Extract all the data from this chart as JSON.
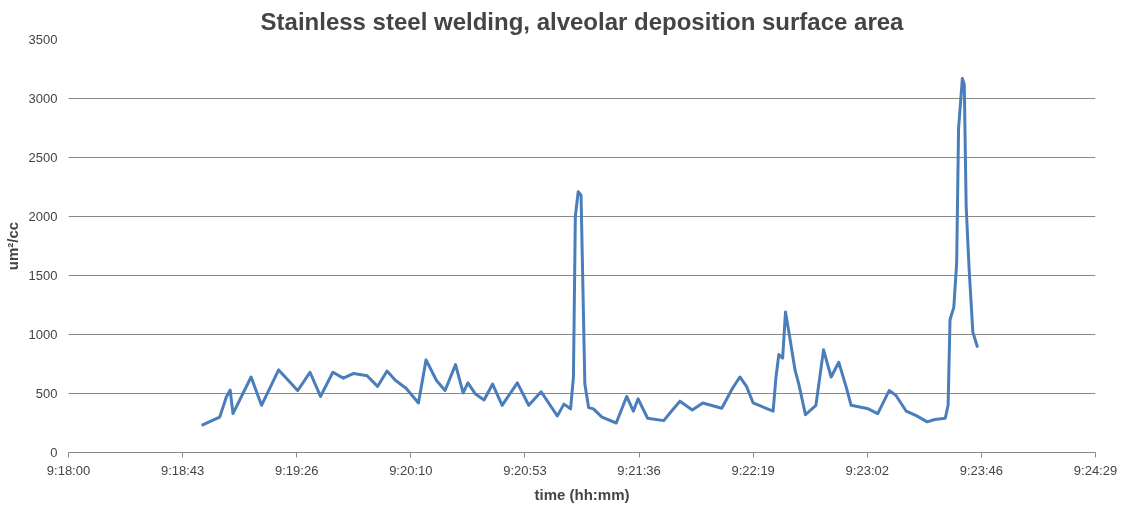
{
  "chart_data": {
    "type": "line",
    "title": "Stainless steel welding, alveolar deposition surface area",
    "xlabel": "time (hh:mm)",
    "ylabel": "um²/cc",
    "x": [
      9.314,
      9.3148,
      9.3159,
      9.3166,
      9.317,
      9.3173,
      9.3192,
      9.3203,
      9.3221,
      9.3241,
      9.3254,
      9.3265,
      9.3278,
      9.3289,
      9.33,
      9.3314,
      9.3325,
      9.3335,
      9.3344,
      9.3355,
      9.3368,
      9.3376,
      9.3387,
      9.3396,
      9.3407,
      9.3415,
      9.342,
      9.3428,
      9.3437,
      9.3446,
      9.3456,
      9.3472,
      9.3484,
      9.3497,
      9.3514,
      9.3521,
      9.3528,
      9.3531,
      9.3533,
      9.3536,
      9.3539,
      9.3543,
      9.3547,
      9.3552,
      9.3561,
      9.3576,
      9.3587,
      9.3594,
      9.3599,
      9.3609,
      9.3626,
      9.3634,
      9.3643,
      9.3656,
      9.3667,
      9.3687,
      9.3698,
      9.3706,
      9.3713,
      9.372,
      9.3735,
      9.3741,
      9.3744,
      9.3747,
      9.3751,
      9.3754,
      9.3758,
      9.3764,
      9.3768,
      9.3775,
      9.3786,
      9.3794,
      9.3802,
      9.381,
      9.3818,
      9.3823,
      9.3841,
      9.3851,
      9.3863,
      9.387,
      9.3881,
      9.3892,
      9.3903,
      9.3911,
      9.3922,
      9.3925,
      9.3927,
      9.3931,
      9.3934,
      9.3936,
      9.394,
      9.3942,
      9.3944,
      9.3947,
      9.3951,
      9.3956
    ],
    "series": [
      {
        "color": "#4a7ebb",
        "values": [
          230,
          260,
          300,
          470,
          530,
          330,
          640,
          400,
          700,
          525,
          680,
          475,
          680,
          630,
          670,
          650,
          560,
          690,
          610,
          545,
          420,
          785,
          610,
          525,
          745,
          505,
          590,
          495,
          445,
          580,
          400,
          590,
          400,
          515,
          310,
          410,
          370,
          640,
          2000,
          2210,
          2180,
          580,
          380,
          370,
          300,
          250,
          475,
          350,
          455,
          290,
          270,
          350,
          435,
          360,
          420,
          375,
          540,
          640,
          560,
          420,
          370,
          350,
          640,
          830,
          800,
          1190,
          1000,
          700,
          580,
          320,
          400,
          870,
          640,
          765,
          550,
          400,
          370,
          330,
          525,
          485,
          350,
          310,
          260,
          280,
          290,
          400,
          1125,
          1230,
          1610,
          2745,
          3170,
          3120,
          2085,
          1570,
          1020,
          890
        ]
      }
    ],
    "xlim": [
      9.3,
      9.408
    ],
    "xticks": [
      {
        "value": 9.3,
        "label": "9:18:00"
      },
      {
        "value": 9.312,
        "label": "9:18:43"
      },
      {
        "value": 9.324,
        "label": "9:19:26"
      },
      {
        "value": 9.336,
        "label": "9:20:10"
      },
      {
        "value": 9.348,
        "label": "9:20:53"
      },
      {
        "value": 9.36,
        "label": "9:21:36"
      },
      {
        "value": 9.372,
        "label": "9:22:19"
      },
      {
        "value": 9.384,
        "label": "9:23:02"
      },
      {
        "value": 9.396,
        "label": "9:23:46"
      },
      {
        "value": 9.408,
        "label": "9:24:29"
      }
    ],
    "ylim": [
      0,
      3500
    ],
    "yticks": [
      0,
      500,
      1000,
      1500,
      2000,
      2500,
      3000,
      3500
    ],
    "grid": "y",
    "line_style": "solid",
    "marker": "none"
  }
}
